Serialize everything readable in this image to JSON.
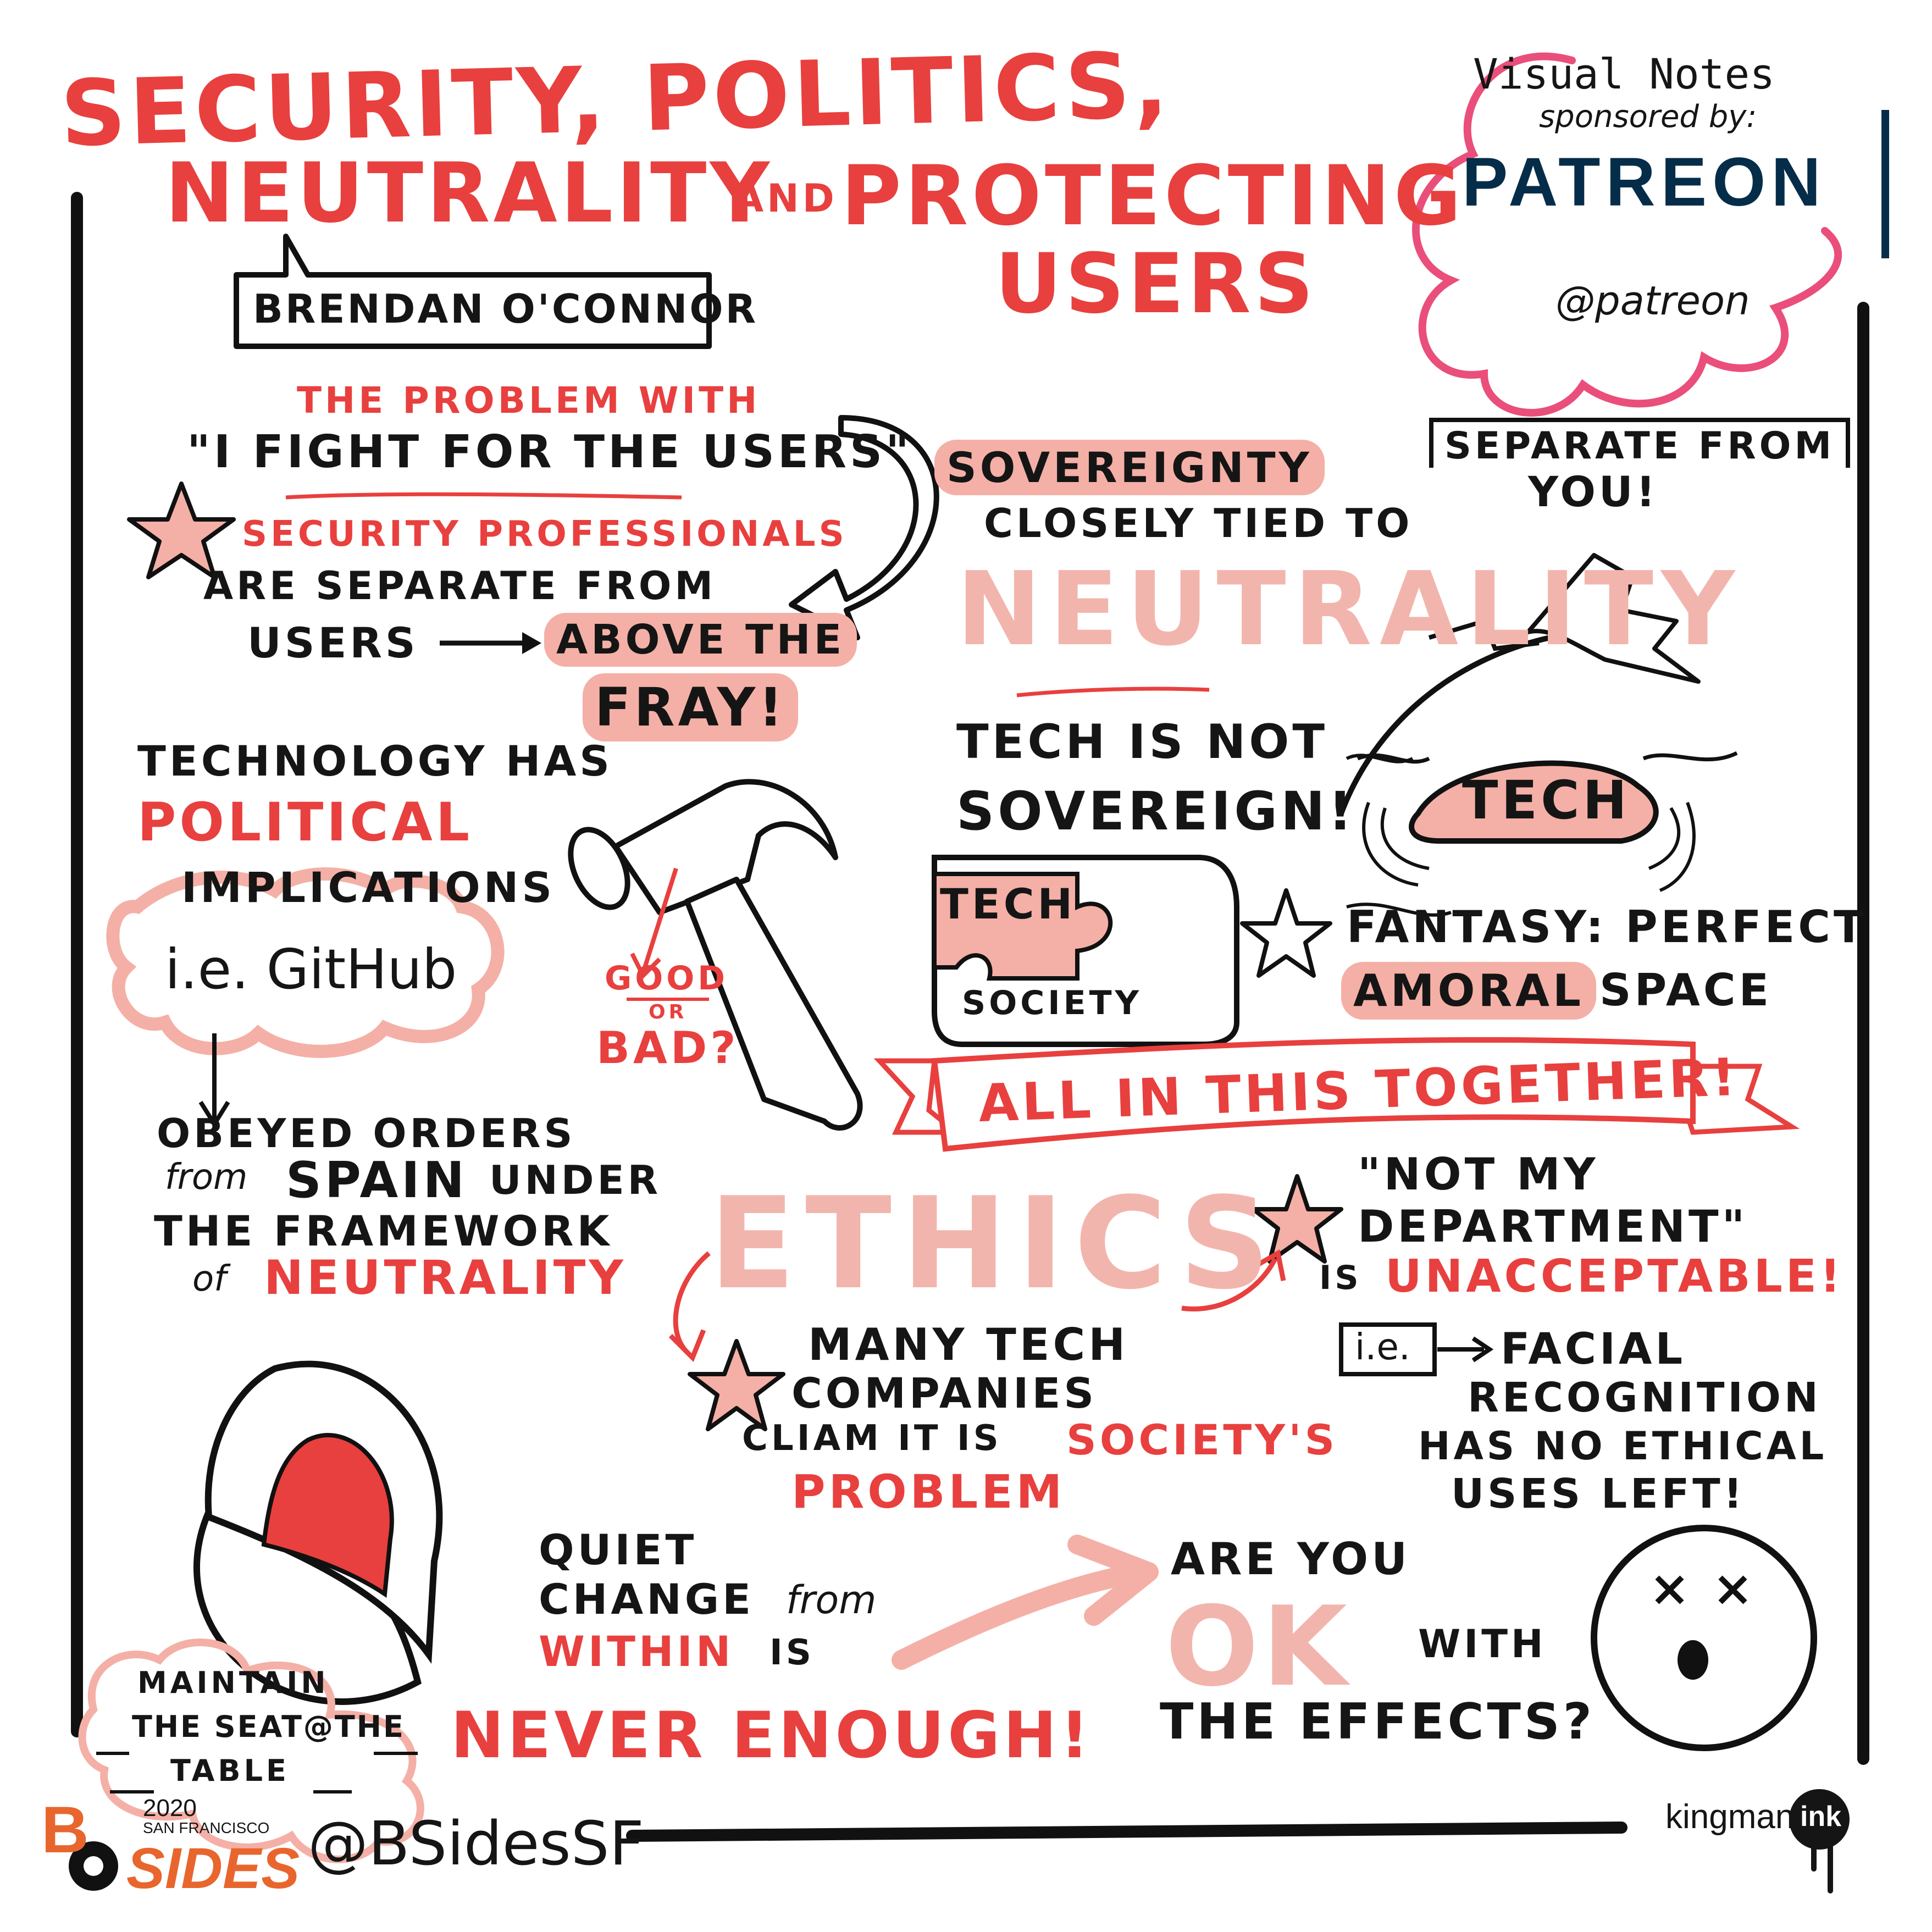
{
  "title": {
    "line1": "SECURITY, POLITICS,",
    "line2a": "NEUTRALITY",
    "line2b": "AND",
    "line2c": "PROTECTING",
    "line3": "USERS"
  },
  "speaker": "BRENDAN O'CONNOR",
  "sponsor": {
    "line1": "Visual Notes",
    "line2": "sponsored by:",
    "brand": "PATREON",
    "handle": "@patreon"
  },
  "problem": {
    "heading": "THE PROBLEM with",
    "quote": "\"I FIGHT for THE USERS\"",
    "sec_pros": "SECURITY PROFESSIONALS",
    "are_separate": "ARE SEPARATE from",
    "users": "USERS",
    "above": "ABOVE the",
    "fray": "FRAY!"
  },
  "sovereignty": {
    "word": "SOVEREIGNTY",
    "bubble1": "SEPARATE from",
    "bubble2": "YOU!",
    "closely": "CLOSELY TIED to",
    "neutrality": "NEUTRALITY"
  },
  "tech_not": {
    "line1": "TECH IS NOT",
    "line2": "SOVEREIGN!",
    "island": "TECH"
  },
  "puzzle": {
    "tech": "TECH",
    "society": "SOCIETY"
  },
  "fantasy": {
    "line1": "FANTASY: PERFECT",
    "amoral": "AMORAL",
    "space": "SPACE"
  },
  "technology": {
    "line1": "TECHNOLOGY HAS",
    "political": "POLITICAL",
    "line3": "IMPLICATIONS",
    "github": "i.e. GitHub",
    "obeyed1": "OBEYED ORDERS",
    "obeyed2a": "from",
    "obeyed2b": "SPAIN",
    "obeyed2c": "UNDER",
    "obeyed3": "THE FRAMEWORK",
    "obeyed4a": "of",
    "obeyed4b": "NEUTRALITY"
  },
  "hammer": {
    "good": "GOOD",
    "or": "OR",
    "bad": "BAD?"
  },
  "banner": "ALL IN THIS TOGETHER!",
  "ethics": {
    "word": "ETHICS",
    "many1": "MANY TECH",
    "many2": "COMPANIES",
    "many3a": "CLIAM it is",
    "many3b": "SOCIETY'S",
    "many4": "PROBLEM",
    "not1": "\"NOT MY",
    "not2": "DEPARTMENT\"",
    "not3a": "IS",
    "not3b": "UNACCEPTABLE!",
    "ie": "i.e.",
    "facial1": "FACIAL",
    "facial2": "RECOGNITION",
    "facial3": "HAS NO ETHICAL",
    "facial4": "USES LEFT!"
  },
  "quiet": {
    "line1": "QUIET",
    "line2a": "CHANGE",
    "line2b": "from",
    "within": "WITHIN",
    "is": "IS",
    "never": "NEVER ENOUGH!"
  },
  "maintain": {
    "line1": "MAINTAIN",
    "line2": "THE SEAT@THE",
    "line3": "TABLE"
  },
  "ok": {
    "line1": "ARE YOU",
    "ok": "OK",
    "with": "WITH",
    "line3": "THE EFFECTS?"
  },
  "footer": {
    "year": "2020",
    "city": "SAN FRANCISCO",
    "bsides": "SIDES",
    "b": "B",
    "handle": "@BSidesSF",
    "kingman": "kingman",
    "ink": "ink"
  },
  "colors": {
    "red": "#e8403e",
    "pink": "#f4b0a6",
    "patreon_navy": "#052d49",
    "patreon_pink": "#e94f7a",
    "bsides_orange": "#e8662d"
  }
}
